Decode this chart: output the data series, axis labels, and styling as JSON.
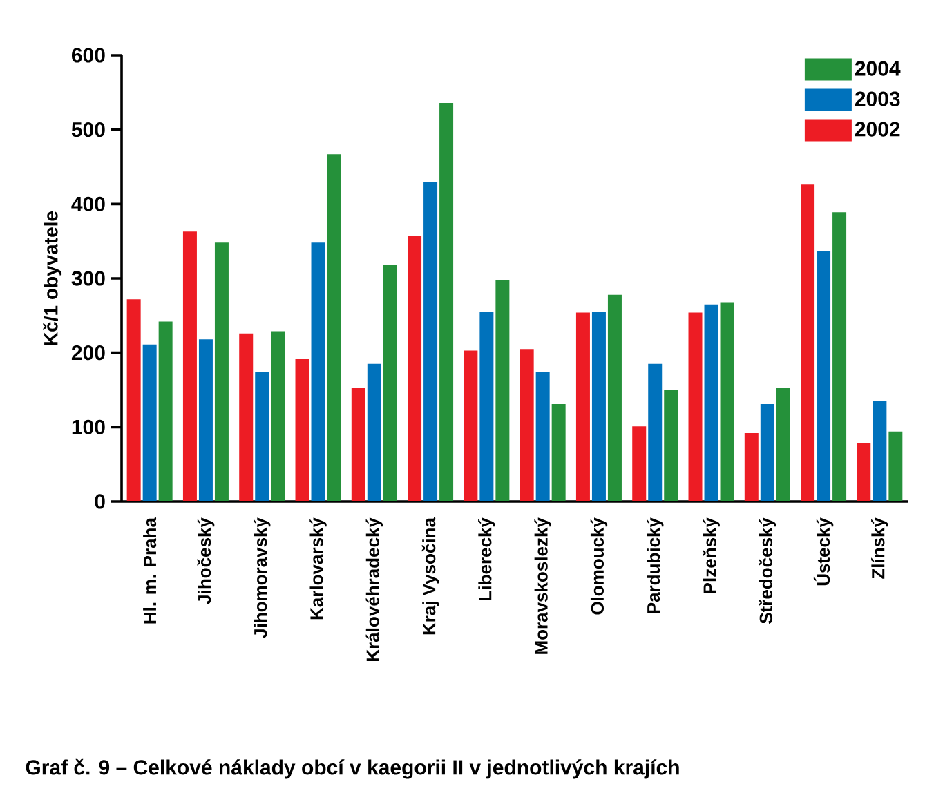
{
  "chart_data": {
    "type": "bar",
    "title": "Graf č. 9 – Celkové náklady obcí v kaegorii II v jednotlivých krajích",
    "ylabel": "Kč/1 obyvatele",
    "categories": [
      "Hl. m. Praha",
      "Jihočeský",
      "Jihomoravský",
      "Karlovarský",
      "Královéhradecký",
      "Kraj Vysočina",
      "Liberecký",
      "Moravskoslezký",
      "Olomoucký",
      "Pardubický",
      "Plzeňský",
      "Středočeský",
      "Ústecký",
      "Zlínský"
    ],
    "series": [
      {
        "name": "2002",
        "color": "#ed1c24",
        "values": [
          272,
          363,
          226,
          192,
          153,
          357,
          203,
          205,
          254,
          101,
          254,
          92,
          426,
          79
        ]
      },
      {
        "name": "2003",
        "color": "#0072bc",
        "values": [
          211,
          218,
          174,
          348,
          185,
          430,
          255,
          174,
          255,
          185,
          265,
          131,
          337,
          135
        ]
      },
      {
        "name": "2004",
        "color": "#25913a",
        "values": [
          242,
          348,
          229,
          467,
          318,
          536,
          298,
          131,
          278,
          150,
          268,
          153,
          389,
          94
        ]
      }
    ],
    "ylim": [
      0,
      600
    ],
    "yticks": [
      0,
      100,
      200,
      300,
      400,
      500,
      600
    ],
    "legend": "top right"
  }
}
